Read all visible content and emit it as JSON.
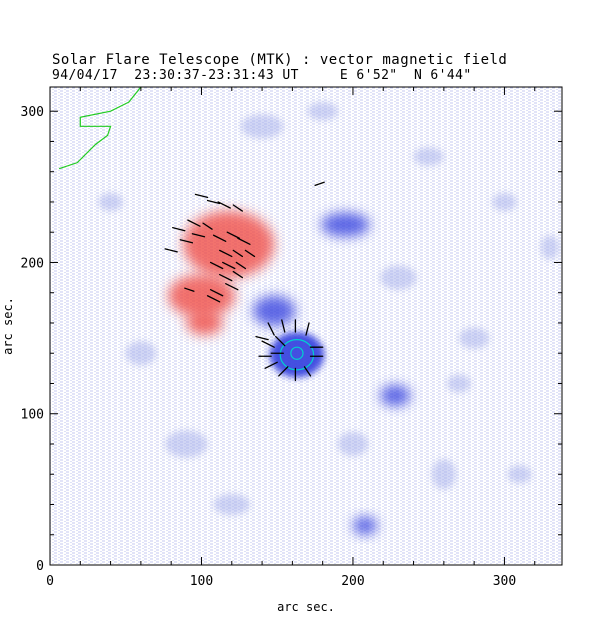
{
  "figure": {
    "title": "Solar Flare Telescope (MTK) : vector magnetic field",
    "subtitle": "94/04/17  23:30:37-23:31:43 UT     E 6'52\"  N 6'44\"",
    "xlabel": "arc sec.",
    "ylabel": "arc sec.",
    "xlim": [
      0,
      338
    ],
    "ylim": [
      0,
      316
    ],
    "x_ticks": [
      0,
      100,
      200,
      300
    ],
    "y_ticks": [
      0,
      100,
      200,
      300
    ],
    "x_tick_labels": [
      "0",
      "100",
      "200",
      "300"
    ],
    "y_tick_labels": [
      "0",
      "100",
      "200",
      "300"
    ],
    "colors": {
      "positive_polarity": "#f0504a",
      "negative_polarity": "#3a46e0",
      "background_noise": "#aab3ec",
      "contour_umbra": "#00d0d0",
      "contour_limb": "#22cc22",
      "transverse_field": "#000000"
    }
  },
  "chart_data": {
    "type": "heatmap",
    "title": "Solar Flare Telescope (MTK) : vector magnetic field",
    "xlabel": "arc sec.",
    "ylabel": "arc sec.",
    "xlim": [
      0,
      338
    ],
    "ylim": [
      0,
      316
    ],
    "polarity_regions": [
      {
        "name": "positive-region-main",
        "polarity": "positive",
        "cx": 118,
        "cy": 212,
        "rx": 30,
        "ry": 22
      },
      {
        "name": "positive-region-tail",
        "polarity": "positive",
        "cx": 100,
        "cy": 178,
        "rx": 22,
        "ry": 14
      },
      {
        "name": "positive-region-south",
        "polarity": "positive",
        "cx": 102,
        "cy": 160,
        "rx": 12,
        "ry": 8
      },
      {
        "name": "negative-sunspot",
        "polarity": "negative",
        "cx": 163,
        "cy": 139,
        "rx": 18,
        "ry": 15
      },
      {
        "name": "negative-region-east",
        "polarity": "negative",
        "cx": 148,
        "cy": 168,
        "rx": 14,
        "ry": 10
      },
      {
        "name": "negative-region-north",
        "polarity": "negative",
        "cx": 195,
        "cy": 225,
        "rx": 16,
        "ry": 8
      },
      {
        "name": "negative-region-se",
        "polarity": "negative",
        "cx": 228,
        "cy": 112,
        "rx": 10,
        "ry": 7
      },
      {
        "name": "negative-region-south",
        "polarity": "negative",
        "cx": 208,
        "cy": 26,
        "rx": 8,
        "ry": 6
      }
    ],
    "contours": [
      {
        "name": "sunspot-umbra-contour",
        "type": "ellipse",
        "cx": 163,
        "cy": 139,
        "rx": 11,
        "ry": 10
      },
      {
        "name": "sunspot-core-contour",
        "type": "ellipse",
        "cx": 163,
        "cy": 140,
        "rx": 4,
        "ry": 4
      },
      {
        "name": "limb-contour",
        "type": "polyline",
        "points": [
          [
            6,
            262
          ],
          [
            18,
            266
          ],
          [
            30,
            278
          ],
          [
            38,
            284
          ],
          [
            40,
            290
          ],
          [
            20,
            290
          ],
          [
            20,
            296
          ],
          [
            40,
            300
          ],
          [
            52,
            306
          ],
          [
            60,
            316
          ]
        ]
      }
    ],
    "transverse_vectors": [
      {
        "x": 100,
        "y": 244,
        "dx": 4,
        "dy": -1
      },
      {
        "x": 108,
        "y": 240,
        "dx": 4,
        "dy": -1
      },
      {
        "x": 115,
        "y": 238,
        "dx": 4,
        "dy": -2
      },
      {
        "x": 124,
        "y": 236,
        "dx": 3,
        "dy": -2
      },
      {
        "x": 85,
        "y": 222,
        "dx": 4,
        "dy": -1
      },
      {
        "x": 95,
        "y": 226,
        "dx": 4,
        "dy": -2
      },
      {
        "x": 104,
        "y": 224,
        "dx": 3,
        "dy": -2
      },
      {
        "x": 90,
        "y": 214,
        "dx": 4,
        "dy": -1
      },
      {
        "x": 98,
        "y": 218,
        "dx": 4,
        "dy": -1
      },
      {
        "x": 112,
        "y": 216,
        "dx": 4,
        "dy": -2
      },
      {
        "x": 80,
        "y": 208,
        "dx": 4,
        "dy": -1
      },
      {
        "x": 121,
        "y": 218,
        "dx": 4,
        "dy": -2
      },
      {
        "x": 128,
        "y": 214,
        "dx": 4,
        "dy": -2
      },
      {
        "x": 116,
        "y": 206,
        "dx": 4,
        "dy": -2
      },
      {
        "x": 124,
        "y": 206,
        "dx": 3,
        "dy": -2
      },
      {
        "x": 132,
        "y": 206,
        "dx": 3,
        "dy": -2
      },
      {
        "x": 110,
        "y": 198,
        "dx": 4,
        "dy": -2
      },
      {
        "x": 118,
        "y": 198,
        "dx": 4,
        "dy": -2
      },
      {
        "x": 126,
        "y": 198,
        "dx": 3,
        "dy": -2
      },
      {
        "x": 116,
        "y": 190,
        "dx": 4,
        "dy": -2
      },
      {
        "x": 124,
        "y": 192,
        "dx": 3,
        "dy": -2
      },
      {
        "x": 120,
        "y": 184,
        "dx": 4,
        "dy": -2
      },
      {
        "x": 110,
        "y": 180,
        "dx": 4,
        "dy": -2
      },
      {
        "x": 92,
        "y": 182,
        "dx": 3,
        "dy": -1
      },
      {
        "x": 108,
        "y": 176,
        "dx": 4,
        "dy": -2
      },
      {
        "x": 178,
        "y": 252,
        "dx": 3,
        "dy": 1
      },
      {
        "x": 146,
        "y": 156,
        "dx": 2,
        "dy": -4
      },
      {
        "x": 154,
        "y": 158,
        "dx": 1,
        "dy": -4
      },
      {
        "x": 162,
        "y": 158,
        "dx": 0,
        "dy": -4
      },
      {
        "x": 170,
        "y": 156,
        "dx": -1,
        "dy": -4
      },
      {
        "x": 144,
        "y": 146,
        "dx": 4,
        "dy": -2
      },
      {
        "x": 152,
        "y": 148,
        "dx": 3,
        "dy": -3
      },
      {
        "x": 176,
        "y": 144,
        "dx": -4,
        "dy": 0
      },
      {
        "x": 142,
        "y": 138,
        "dx": 4,
        "dy": 0
      },
      {
        "x": 150,
        "y": 140,
        "dx": 4,
        "dy": 0
      },
      {
        "x": 176,
        "y": 138,
        "dx": -4,
        "dy": 0
      },
      {
        "x": 146,
        "y": 132,
        "dx": 4,
        "dy": 2
      },
      {
        "x": 154,
        "y": 128,
        "dx": 3,
        "dy": 3
      },
      {
        "x": 162,
        "y": 126,
        "dx": 0,
        "dy": 4
      },
      {
        "x": 170,
        "y": 128,
        "dx": -2,
        "dy": 3
      },
      {
        "x": 140,
        "y": 150,
        "dx": 4,
        "dy": -1
      }
    ]
  }
}
